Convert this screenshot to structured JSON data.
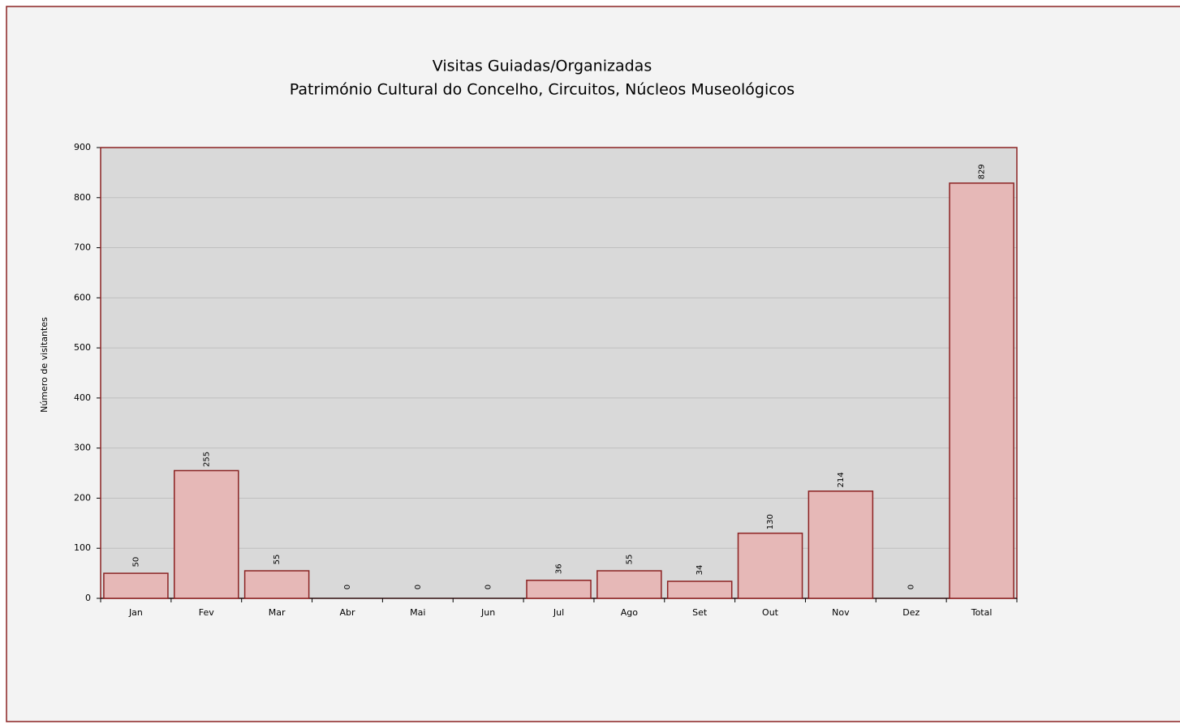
{
  "chart_data": {
    "type": "bar",
    "title": "Visitas Guiadas/Organizadas",
    "subtitle": "Património Cultural do Concelho, Circuitos, Núcleos Museológicos",
    "y_label": "Número de visitantes",
    "categories": [
      "Jan",
      "Fev",
      "Mar",
      "Abr",
      "Mai",
      "Jun",
      "Jul",
      "Ago",
      "Set",
      "Out",
      "Nov",
      "Dez",
      "Total"
    ],
    "values": [
      50,
      255,
      55,
      0,
      0,
      0,
      36,
      55,
      34,
      130,
      214,
      0,
      829
    ],
    "color": "#e6b8b7",
    "ylim": [
      0,
      900
    ],
    "yticks": [
      0,
      100,
      200,
      300,
      400,
      500,
      600,
      700,
      800,
      900
    ],
    "grid": true
  }
}
